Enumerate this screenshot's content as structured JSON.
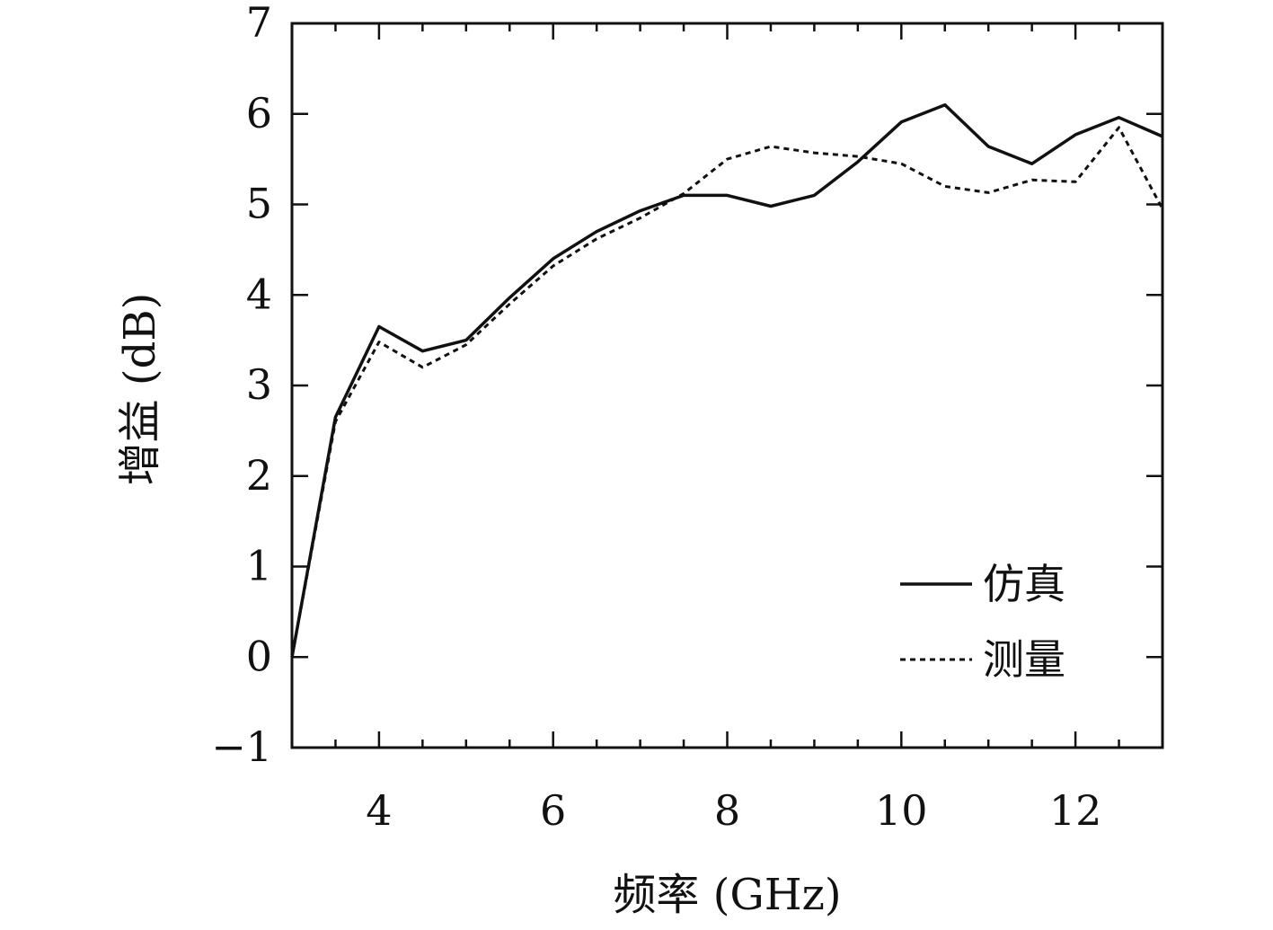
{
  "chart_data": {
    "type": "line",
    "xlabel": "频率 (GHz)",
    "ylabel": "增益 (dB)",
    "xlim": [
      3,
      13
    ],
    "ylim": [
      -1,
      7
    ],
    "xticks": [
      4,
      6,
      8,
      10,
      12
    ],
    "yticks": [
      -1,
      0,
      1,
      2,
      3,
      4,
      5,
      6,
      7
    ],
    "xtick_labels": [
      "4",
      "6",
      "8",
      "10",
      "12"
    ],
    "ytick_labels": [
      "−1",
      "0",
      "1",
      "2",
      "3",
      "4",
      "5",
      "6",
      "7"
    ],
    "legend_position": "lower-right",
    "grid": false,
    "x": [
      3.0,
      3.5,
      4.0,
      4.5,
      5.0,
      5.5,
      6.0,
      6.5,
      7.0,
      7.5,
      8.0,
      8.5,
      9.0,
      9.5,
      10.0,
      10.5,
      11.0,
      11.5,
      12.0,
      12.5,
      13.0
    ],
    "series": [
      {
        "name": "仿真",
        "style": "solid",
        "color": "#111111",
        "values": [
          0.0,
          2.65,
          3.65,
          3.38,
          3.5,
          3.97,
          4.4,
          4.7,
          4.93,
          5.1,
          5.1,
          4.98,
          5.1,
          5.47,
          5.91,
          6.1,
          5.64,
          5.45,
          5.77,
          5.96,
          5.75
        ]
      },
      {
        "name": "测量",
        "style": "dotted",
        "color": "#111111",
        "values": [
          0.0,
          2.6,
          3.48,
          3.2,
          3.45,
          3.9,
          4.32,
          4.62,
          4.85,
          5.12,
          5.5,
          5.64,
          5.57,
          5.53,
          5.45,
          5.2,
          5.13,
          5.27,
          5.25,
          5.85,
          4.95
        ]
      }
    ]
  }
}
